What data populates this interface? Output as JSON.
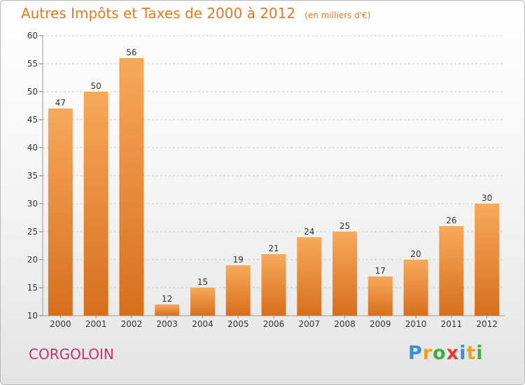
{
  "title": "Autres Impôts et Taxes de 2000 à 2012",
  "title_unit": "(en milliers d'€)",
  "commune": "CORGOLOIN",
  "brand": {
    "letters": [
      "P",
      "r",
      "o",
      "x",
      "i",
      "t",
      "i"
    ],
    "colors": [
      "#3b8fd6",
      "#f0a020",
      "#3cae3c",
      "#e23a2e",
      "#3b8fd6",
      "#f0a020",
      "#3cae3c"
    ]
  },
  "colors": {
    "bar_top": "#f7a95a",
    "bar_bottom": "#d76f1d",
    "grid": "#c8c8c8",
    "axis_text": "#333333",
    "title": "#e07a26",
    "commune": "#c0356a"
  },
  "chart_data": {
    "type": "bar",
    "categories": [
      "2000",
      "2001",
      "2002",
      "2003",
      "2004",
      "2005",
      "2006",
      "2007",
      "2008",
      "2009",
      "2010",
      "2011",
      "2012"
    ],
    "values": [
      47,
      50,
      56,
      12,
      15,
      19,
      21,
      24,
      25,
      17,
      20,
      26,
      30
    ],
    "title": "Autres Impôts et Taxes de 2000 à 2012",
    "xlabel": "",
    "ylabel": "",
    "ylim": [
      10,
      60
    ],
    "yticks": [
      10,
      15,
      20,
      25,
      30,
      35,
      40,
      45,
      50,
      55,
      60
    ],
    "grid": "horizontal dashed",
    "legend": "none",
    "data_labels": true
  }
}
